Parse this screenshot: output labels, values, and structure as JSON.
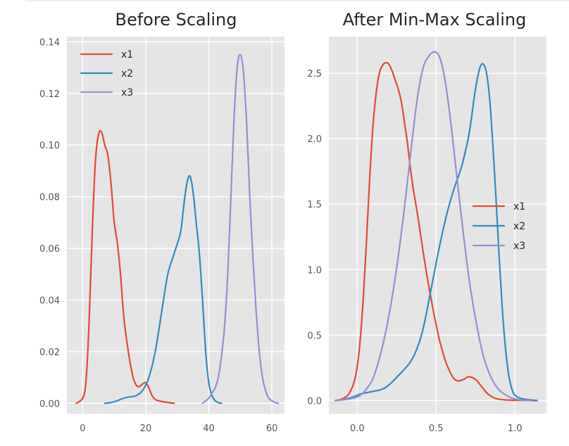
{
  "chart_data": [
    {
      "type": "line",
      "title": "Before Scaling",
      "xlabel": "",
      "ylabel": "",
      "xlim": [
        -5,
        64
      ],
      "ylim": [
        -0.004,
        0.142
      ],
      "xticks": [
        0,
        20,
        40,
        60
      ],
      "yticks": [
        0.0,
        0.02,
        0.04,
        0.06,
        0.08,
        0.1,
        0.12,
        0.14
      ],
      "xtick_labels": [
        "0",
        "20",
        "40",
        "60"
      ],
      "ytick_labels": [
        "0.00",
        "0.02",
        "0.04",
        "0.06",
        "0.08",
        "0.10",
        "0.12",
        "0.14"
      ],
      "grid": true,
      "legend": "upper-left",
      "series": [
        {
          "name": "x1",
          "color": "#E24A33",
          "x": [
            -2,
            0,
            1,
            2,
            3,
            4,
            5,
            6,
            7,
            8,
            9,
            10,
            11,
            12,
            13,
            14,
            15,
            16,
            17,
            18,
            19,
            20,
            21,
            22,
            23,
            24,
            26,
            29
          ],
          "y": [
            0.0,
            0.002,
            0.008,
            0.03,
            0.065,
            0.093,
            0.104,
            0.105,
            0.1,
            0.096,
            0.085,
            0.07,
            0.062,
            0.05,
            0.034,
            0.024,
            0.016,
            0.01,
            0.007,
            0.0065,
            0.0075,
            0.008,
            0.006,
            0.003,
            0.0015,
            0.001,
            0.0005,
            0.0
          ]
        },
        {
          "name": "x2",
          "color": "#348ABD",
          "x": [
            7,
            9,
            11,
            13,
            15,
            17,
            19,
            21,
            23,
            25,
            27,
            29,
            31,
            32,
            33,
            34,
            35,
            36,
            37,
            38,
            39,
            40,
            41,
            42,
            43,
            44
          ],
          "y": [
            0.0,
            0.0003,
            0.001,
            0.002,
            0.0025,
            0.003,
            0.005,
            0.01,
            0.02,
            0.035,
            0.05,
            0.058,
            0.066,
            0.076,
            0.085,
            0.088,
            0.082,
            0.07,
            0.058,
            0.04,
            0.02,
            0.008,
            0.003,
            0.001,
            0.0003,
            0.0
          ]
        },
        {
          "name": "x3",
          "color": "#988ED5",
          "x": [
            38,
            40,
            41,
            42,
            43,
            44,
            45,
            46,
            47,
            48,
            49,
            50,
            51,
            52,
            53,
            54,
            55,
            56,
            57,
            58,
            59,
            60,
            61,
            62
          ],
          "y": [
            0.0,
            0.002,
            0.004,
            0.006,
            0.01,
            0.018,
            0.03,
            0.05,
            0.08,
            0.11,
            0.13,
            0.135,
            0.128,
            0.108,
            0.08,
            0.056,
            0.036,
            0.02,
            0.01,
            0.005,
            0.002,
            0.001,
            0.0003,
            0.0
          ]
        }
      ]
    },
    {
      "type": "line",
      "title": "After Min-Max Scaling",
      "xlabel": "",
      "ylabel": "",
      "xlim": [
        -0.18,
        1.2
      ],
      "ylim": [
        -0.1,
        2.78
      ],
      "xticks": [
        0.0,
        0.5,
        1.0
      ],
      "yticks": [
        0.0,
        0.5,
        1.0,
        1.5,
        2.0,
        2.5
      ],
      "xtick_labels": [
        "0.0",
        "0.5",
        "1.0"
      ],
      "ytick_labels": [
        "0.0",
        "0.5",
        "1.0",
        "1.5",
        "2.0",
        "2.5"
      ],
      "grid": true,
      "legend": "center-right",
      "series": [
        {
          "name": "x1",
          "color": "#E24A33",
          "x": [
            -0.14,
            -0.1,
            -0.06,
            -0.04,
            -0.02,
            0.0,
            0.02,
            0.04,
            0.06,
            0.08,
            0.1,
            0.12,
            0.14,
            0.16,
            0.18,
            0.2,
            0.22,
            0.24,
            0.26,
            0.28,
            0.3,
            0.32,
            0.34,
            0.36,
            0.38,
            0.4,
            0.42,
            0.44,
            0.46,
            0.48,
            0.5,
            0.52,
            0.54,
            0.56,
            0.58,
            0.6,
            0.62,
            0.64,
            0.66,
            0.68,
            0.7,
            0.72,
            0.74,
            0.76,
            0.78,
            0.8,
            0.82,
            0.84,
            0.86,
            0.88,
            0.9,
            0.94,
            1.0,
            1.06,
            1.14
          ],
          "y": [
            0.0,
            0.01,
            0.04,
            0.08,
            0.14,
            0.26,
            0.48,
            0.82,
            1.25,
            1.72,
            2.1,
            2.35,
            2.5,
            2.56,
            2.58,
            2.57,
            2.52,
            2.45,
            2.38,
            2.28,
            2.12,
            1.95,
            1.75,
            1.58,
            1.44,
            1.28,
            1.12,
            0.97,
            0.83,
            0.7,
            0.58,
            0.47,
            0.38,
            0.3,
            0.24,
            0.19,
            0.16,
            0.15,
            0.155,
            0.165,
            0.18,
            0.18,
            0.17,
            0.15,
            0.12,
            0.09,
            0.06,
            0.04,
            0.025,
            0.015,
            0.01,
            0.005,
            0.002,
            0.001,
            0.0
          ]
        },
        {
          "name": "x2",
          "color": "#348ABD",
          "x": [
            -0.14,
            -0.1,
            -0.06,
            -0.02,
            0.02,
            0.06,
            0.1,
            0.14,
            0.18,
            0.22,
            0.26,
            0.3,
            0.34,
            0.38,
            0.42,
            0.46,
            0.5,
            0.54,
            0.58,
            0.62,
            0.66,
            0.7,
            0.72,
            0.74,
            0.76,
            0.78,
            0.8,
            0.82,
            0.84,
            0.86,
            0.88,
            0.9,
            0.92,
            0.94,
            0.96,
            0.98,
            1.0,
            1.04,
            1.1,
            1.14
          ],
          "y": [
            0.0,
            0.005,
            0.015,
            0.03,
            0.05,
            0.06,
            0.07,
            0.08,
            0.1,
            0.14,
            0.19,
            0.24,
            0.3,
            0.4,
            0.56,
            0.8,
            1.05,
            1.28,
            1.48,
            1.64,
            1.78,
            1.98,
            2.12,
            2.3,
            2.45,
            2.55,
            2.57,
            2.5,
            2.3,
            1.95,
            1.55,
            1.1,
            0.7,
            0.4,
            0.2,
            0.09,
            0.04,
            0.015,
            0.005,
            0.0
          ]
        },
        {
          "name": "x3",
          "color": "#988ED5",
          "x": [
            -0.14,
            -0.1,
            -0.06,
            -0.02,
            0.02,
            0.06,
            0.1,
            0.14,
            0.18,
            0.22,
            0.26,
            0.3,
            0.34,
            0.38,
            0.42,
            0.46,
            0.48,
            0.5,
            0.52,
            0.54,
            0.56,
            0.58,
            0.6,
            0.64,
            0.68,
            0.72,
            0.76,
            0.8,
            0.84,
            0.88,
            0.92,
            0.96,
            1.0,
            1.04,
            1.1
          ],
          "y": [
            0.0,
            0.005,
            0.01,
            0.02,
            0.04,
            0.09,
            0.17,
            0.32,
            0.52,
            0.78,
            1.1,
            1.48,
            1.9,
            2.3,
            2.55,
            2.64,
            2.66,
            2.66,
            2.63,
            2.55,
            2.42,
            2.25,
            2.05,
            1.62,
            1.2,
            0.84,
            0.56,
            0.34,
            0.2,
            0.11,
            0.06,
            0.03,
            0.012,
            0.004,
            0.0
          ]
        }
      ]
    }
  ]
}
